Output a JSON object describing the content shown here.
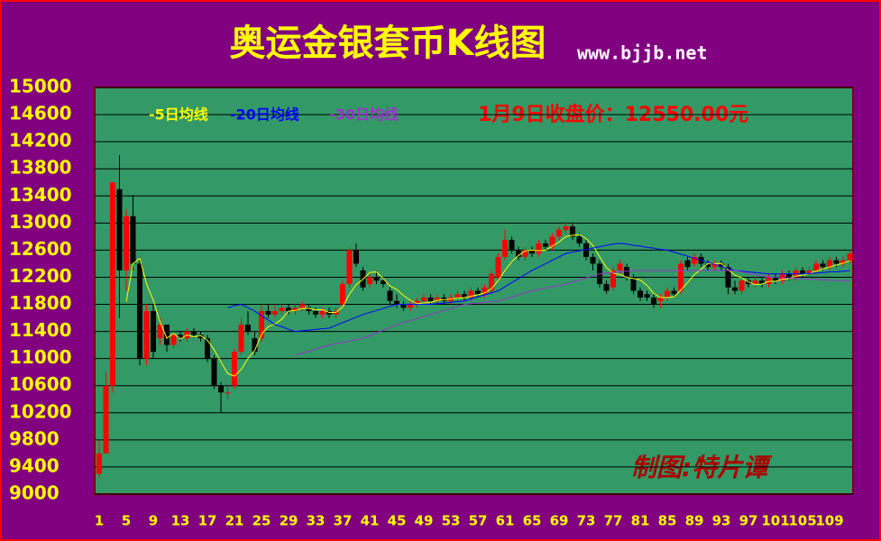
{
  "chart_data": {
    "type": "candlestick",
    "title": "奥运金银套币K线图",
    "subtitle": "www.bjjb.net",
    "annotations": [
      "1月9日收盘价：12550.00元",
      "制图:特片谭"
    ],
    "categories": [
      "1",
      null,
      null,
      null,
      "5",
      null,
      null,
      null,
      "9",
      null,
      null,
      null,
      "13",
      null,
      null,
      null,
      "17",
      null,
      null,
      null,
      "21",
      null,
      null,
      null,
      "25",
      null,
      null,
      null,
      "29",
      null,
      null,
      null,
      "33",
      null,
      null,
      null,
      "37",
      null,
      null,
      null,
      "41",
      null,
      null,
      null,
      "45",
      null,
      null,
      null,
      "49",
      null,
      null,
      null,
      "53",
      null,
      null,
      null,
      "57",
      null,
      null,
      null,
      "61",
      null,
      null,
      null,
      "65",
      null,
      null,
      null,
      "69",
      null,
      null,
      null,
      "73",
      null,
      null,
      null,
      "77",
      null,
      null,
      null,
      "81",
      null,
      null,
      null,
      "85",
      null,
      null,
      null,
      "89",
      null,
      null,
      null,
      "93",
      null,
      null,
      null,
      "97",
      null,
      null,
      null,
      "101",
      null,
      null,
      null,
      "105",
      null,
      null,
      null,
      "109",
      null,
      null,
      null
    ],
    "open": [
      9300,
      9600,
      10600,
      13500,
      12300,
      13100,
      12400,
      11000,
      11700,
      11300,
      11500,
      11200,
      11350,
      11300,
      11400,
      11350,
      11300,
      11000,
      10600,
      10500,
      10600,
      11100,
      11500,
      11300,
      11300,
      11700,
      11650,
      11700,
      11750,
      11700,
      11750,
      11750,
      11700,
      11650,
      11700,
      11650,
      11800,
      12100,
      12600,
      12300,
      12100,
      12200,
      12150,
      12000,
      11850,
      11800,
      11750,
      11800,
      11850,
      11900,
      11850,
      11900,
      11850,
      11900,
      11950,
      11900,
      12000,
      11950,
      12000,
      12200,
      12500,
      12750,
      12600,
      12500,
      12600,
      12550,
      12700,
      12650,
      12800,
      12900,
      12950,
      12800,
      12700,
      12500,
      12400,
      12100,
      12050,
      12300,
      12350,
      12200,
      12000,
      11950,
      11900,
      11850,
      11900,
      12000,
      12000,
      12450,
      12400,
      12500,
      12400,
      12350,
      12400,
      12350,
      12050,
      12000,
      12150,
      12100,
      12150,
      12100,
      12200,
      12150,
      12250,
      12200,
      12300,
      12250,
      12300,
      12400,
      12350,
      12450,
      12400,
      12450
    ],
    "high": [
      9800,
      10800,
      13600,
      14000,
      13200,
      13400,
      12500,
      11800,
      11800,
      11600,
      11500,
      11400,
      11400,
      11450,
      11450,
      11400,
      11350,
      11050,
      10650,
      10600,
      11150,
      11600,
      11700,
      11400,
      11800,
      11800,
      11800,
      11800,
      11800,
      11800,
      11850,
      11800,
      11750,
      11750,
      11750,
      11750,
      12150,
      12650,
      12700,
      12350,
      12250,
      12300,
      12200,
      12050,
      11950,
      11850,
      11850,
      11900,
      11950,
      11950,
      11950,
      11950,
      11950,
      12000,
      12000,
      12050,
      12050,
      12100,
      12300,
      12550,
      12900,
      12800,
      12650,
      12650,
      12650,
      12750,
      12750,
      12850,
      12950,
      13000,
      13000,
      12850,
      12750,
      12550,
      12450,
      12150,
      12350,
      12450,
      12400,
      12250,
      12050,
      12000,
      11950,
      11950,
      12050,
      12050,
      12450,
      12500,
      12550,
      12550,
      12450,
      12450,
      12450,
      12400,
      12150,
      12200,
      12200,
      12200,
      12200,
      12250,
      12250,
      12300,
      12300,
      12350,
      12350,
      12350,
      12450,
      12450,
      12500,
      12500,
      12500,
      12600
    ],
    "low": [
      9250,
      9600,
      10500,
      11600,
      12000,
      12300,
      10900,
      10900,
      11000,
      11200,
      11100,
      11150,
      11250,
      11250,
      11300,
      11250,
      10950,
      10550,
      10200,
      10400,
      10550,
      11050,
      11350,
      11050,
      11250,
      11600,
      11600,
      11650,
      11650,
      11650,
      11700,
      11650,
      11600,
      11600,
      11600,
      11600,
      11750,
      12050,
      12350,
      12000,
      12050,
      12100,
      12050,
      11800,
      11750,
      11700,
      11700,
      11750,
      11800,
      11800,
      11800,
      11800,
      11800,
      11850,
      11850,
      11850,
      11900,
      11900,
      11950,
      12150,
      12450,
      12550,
      12450,
      12450,
      12500,
      12500,
      12600,
      12600,
      12750,
      12850,
      12750,
      12650,
      12450,
      12300,
      12050,
      11950,
      12000,
      12250,
      12150,
      11950,
      11850,
      11850,
      11750,
      11750,
      11850,
      11900,
      11950,
      12300,
      12350,
      12350,
      12300,
      12300,
      12300,
      11950,
      11950,
      11950,
      12050,
      12050,
      12050,
      12050,
      12100,
      12100,
      12150,
      12150,
      12200,
      12200,
      12250,
      12300,
      12300,
      12350,
      12350,
      12400
    ],
    "close": [
      9600,
      10600,
      13600,
      12300,
      13100,
      12400,
      11000,
      11700,
      11100,
      11500,
      11200,
      11350,
      11300,
      11400,
      11350,
      11300,
      11000,
      10600,
      10500,
      10500,
      11100,
      11500,
      11400,
      11100,
      11700,
      11650,
      11700,
      11750,
      11700,
      11750,
      11800,
      11700,
      11650,
      11700,
      11650,
      11700,
      12100,
      12600,
      12400,
      12050,
      12200,
      12150,
      12100,
      11850,
      11800,
      11750,
      11800,
      11850,
      11900,
      11850,
      11900,
      11850,
      11900,
      11950,
      11900,
      12000,
      11950,
      12050,
      12250,
      12500,
      12750,
      12600,
      12500,
      12600,
      12550,
      12700,
      12650,
      12800,
      12900,
      12950,
      12800,
      12700,
      12500,
      12400,
      12100,
      12000,
      12300,
      12400,
      12200,
      12000,
      11900,
      11900,
      11800,
      11900,
      12000,
      11950,
      12400,
      12350,
      12500,
      12400,
      12350,
      12400,
      12350,
      12050,
      12000,
      12150,
      12100,
      12150,
      12100,
      12200,
      12150,
      12250,
      12200,
      12300,
      12250,
      12300,
      12400,
      12350,
      12450,
      12400,
      12450,
      12550
    ],
    "up_color": "#ff0000",
    "down_color": "#000000",
    "series": [
      {
        "name": "-5日均线",
        "color": "#ffff00",
        "values": [
          null,
          null,
          null,
          null,
          11840,
          12400,
          12480,
          12100,
          11860,
          11540,
          11300,
          11370,
          11290,
          11350,
          11320,
          11340,
          11270,
          11130,
          10950,
          10780,
          10740,
          10840,
          11000,
          11120,
          11360,
          11470,
          11510,
          11580,
          11700,
          11710,
          11740,
          11740,
          11720,
          11720,
          11680,
          11680,
          11760,
          11950,
          12090,
          12170,
          12270,
          12280,
          12180,
          12070,
          12020,
          11930,
          11860,
          11810,
          11820,
          11830,
          11860,
          11870,
          11880,
          11890,
          11900,
          11920,
          11940,
          11970,
          12030,
          12150,
          12300,
          12430,
          12520,
          12590,
          12600,
          12590,
          12600,
          12660,
          12720,
          12800,
          12820,
          12830,
          12770,
          12670,
          12500,
          12340,
          12260,
          12240,
          12200,
          12180,
          12160,
          12080,
          11960,
          11900,
          11900,
          11910,
          12010,
          12120,
          12240,
          12320,
          12400,
          12400,
          12400,
          12310,
          12230,
          12190,
          12130,
          12090,
          12100,
          12140,
          12140,
          12170,
          12180,
          12220,
          12230,
          12260,
          12290,
          12320,
          12350,
          12380,
          12410,
          12440
        ]
      },
      {
        "name": "-20日均线",
        "color": "#0000ff",
        "values": [
          null,
          null,
          null,
          null,
          null,
          null,
          null,
          null,
          null,
          null,
          null,
          null,
          null,
          null,
          null,
          null,
          null,
          null,
          null,
          11750,
          11780,
          11800,
          11750,
          11700,
          11630,
          11570,
          11500,
          11470,
          11430,
          11400,
          11410,
          11420,
          11430,
          11440,
          11450,
          11490,
          11530,
          11570,
          11610,
          11650,
          11680,
          11710,
          11740,
          11770,
          11800,
          11800,
          11800,
          11800,
          11800,
          11800,
          11810,
          11820,
          11830,
          11840,
          11850,
          11880,
          11910,
          11940,
          11970,
          12000,
          12060,
          12120,
          12180,
          12240,
          12300,
          12350,
          12400,
          12450,
          12500,
          12550,
          12570,
          12590,
          12610,
          12630,
          12650,
          12670,
          12690,
          12700,
          12690,
          12670,
          12660,
          12640,
          12630,
          12610,
          12600,
          12570,
          12540,
          12510,
          12480,
          12450,
          12420,
          12390,
          12360,
          12330,
          12300,
          12290,
          12280,
          12270,
          12260,
          12250,
          12250,
          12250,
          12250,
          12250,
          12250,
          12260,
          12260,
          12270,
          12280,
          12280,
          12290,
          12300
        ]
      },
      {
        "name": "-30日均线",
        "color": "#9933cc",
        "values": [
          null,
          null,
          null,
          null,
          null,
          null,
          null,
          null,
          null,
          null,
          null,
          null,
          null,
          null,
          null,
          null,
          null,
          null,
          null,
          null,
          null,
          null,
          null,
          null,
          null,
          null,
          null,
          null,
          null,
          11050,
          11080,
          11110,
          11140,
          11170,
          11200,
          11220,
          11240,
          11260,
          11280,
          11300,
          11340,
          11380,
          11420,
          11460,
          11500,
          11530,
          11560,
          11590,
          11620,
          11650,
          11680,
          11710,
          11740,
          11770,
          11800,
          11810,
          11820,
          11830,
          11840,
          11850,
          11880,
          11910,
          11940,
          11970,
          12000,
          12020,
          12040,
          12060,
          12080,
          12100,
          12130,
          12160,
          12190,
          12220,
          12250,
          12260,
          12270,
          12280,
          12290,
          12300,
          12300,
          12300,
          12300,
          12300,
          12300,
          12300,
          12300,
          12300,
          12300,
          12300,
          12300,
          12300,
          12300,
          12300,
          12300,
          12280,
          12260,
          12240,
          12220,
          12200,
          12200,
          12190,
          12190,
          12180,
          12180,
          12170,
          12170,
          12160,
          12160,
          12150,
          12150,
          12150
        ]
      }
    ],
    "ylim": [
      9000,
      15000
    ],
    "yticks": [
      9000,
      9400,
      9800,
      10200,
      10600,
      11000,
      11400,
      11800,
      12200,
      12600,
      13000,
      13400,
      13800,
      14200,
      14600,
      15000
    ],
    "grid": true,
    "background": "#800080",
    "plot_color": "#339966"
  }
}
